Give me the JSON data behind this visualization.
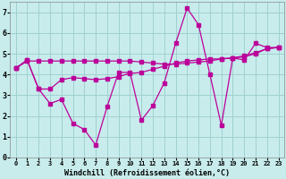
{
  "xlabel": "Windchill (Refroidissement éolien,°C)",
  "bg_color": "#c8ecec",
  "grid_color": "#a0d0d0",
  "line_color": "#bb0099",
  "xlim": [
    -0.5,
    23.5
  ],
  "ylim": [
    0,
    7.5
  ],
  "yticks": [
    0,
    1,
    2,
    3,
    4,
    5,
    6,
    7
  ],
  "xticks": [
    0,
    1,
    2,
    3,
    4,
    5,
    6,
    7,
    8,
    9,
    10,
    11,
    12,
    13,
    14,
    15,
    16,
    17,
    18,
    19,
    20,
    21,
    22,
    23
  ],
  "line1_x": [
    0,
    1,
    2,
    3,
    4,
    5,
    6,
    7,
    8,
    9,
    10,
    11,
    12,
    13,
    14,
    15,
    16,
    17,
    18,
    19,
    20,
    21,
    22,
    23
  ],
  "line1_y": [
    4.3,
    4.7,
    3.3,
    2.6,
    2.8,
    1.65,
    1.35,
    0.6,
    2.45,
    4.1,
    4.1,
    1.8,
    2.5,
    3.6,
    5.5,
    7.2,
    6.4,
    4.0,
    1.55,
    4.8,
    4.7,
    5.5,
    5.3,
    5.3
  ],
  "line2_x": [
    0,
    1,
    2,
    3,
    4,
    5,
    6,
    7,
    8,
    9,
    10,
    11,
    12,
    13,
    14,
    15,
    16,
    17,
    18,
    19,
    20,
    21,
    22,
    23
  ],
  "line2_y": [
    4.3,
    4.7,
    3.3,
    3.3,
    3.75,
    3.85,
    3.8,
    3.75,
    3.8,
    3.9,
    4.05,
    4.1,
    4.25,
    4.4,
    4.55,
    4.65,
    4.7,
    4.75,
    4.75,
    4.8,
    4.85,
    5.0,
    5.25,
    5.3
  ],
  "line3_x": [
    0,
    1,
    2,
    3,
    4,
    5,
    6,
    7,
    8,
    9,
    10,
    11,
    12,
    13,
    14,
    15,
    16,
    17,
    18,
    19,
    20,
    21,
    22,
    23
  ],
  "line3_y": [
    4.3,
    4.65,
    4.65,
    4.65,
    4.65,
    4.65,
    4.65,
    4.65,
    4.65,
    4.65,
    4.65,
    4.6,
    4.55,
    4.5,
    4.5,
    4.55,
    4.6,
    4.65,
    4.75,
    4.8,
    4.9,
    5.05,
    5.25,
    5.3
  ]
}
